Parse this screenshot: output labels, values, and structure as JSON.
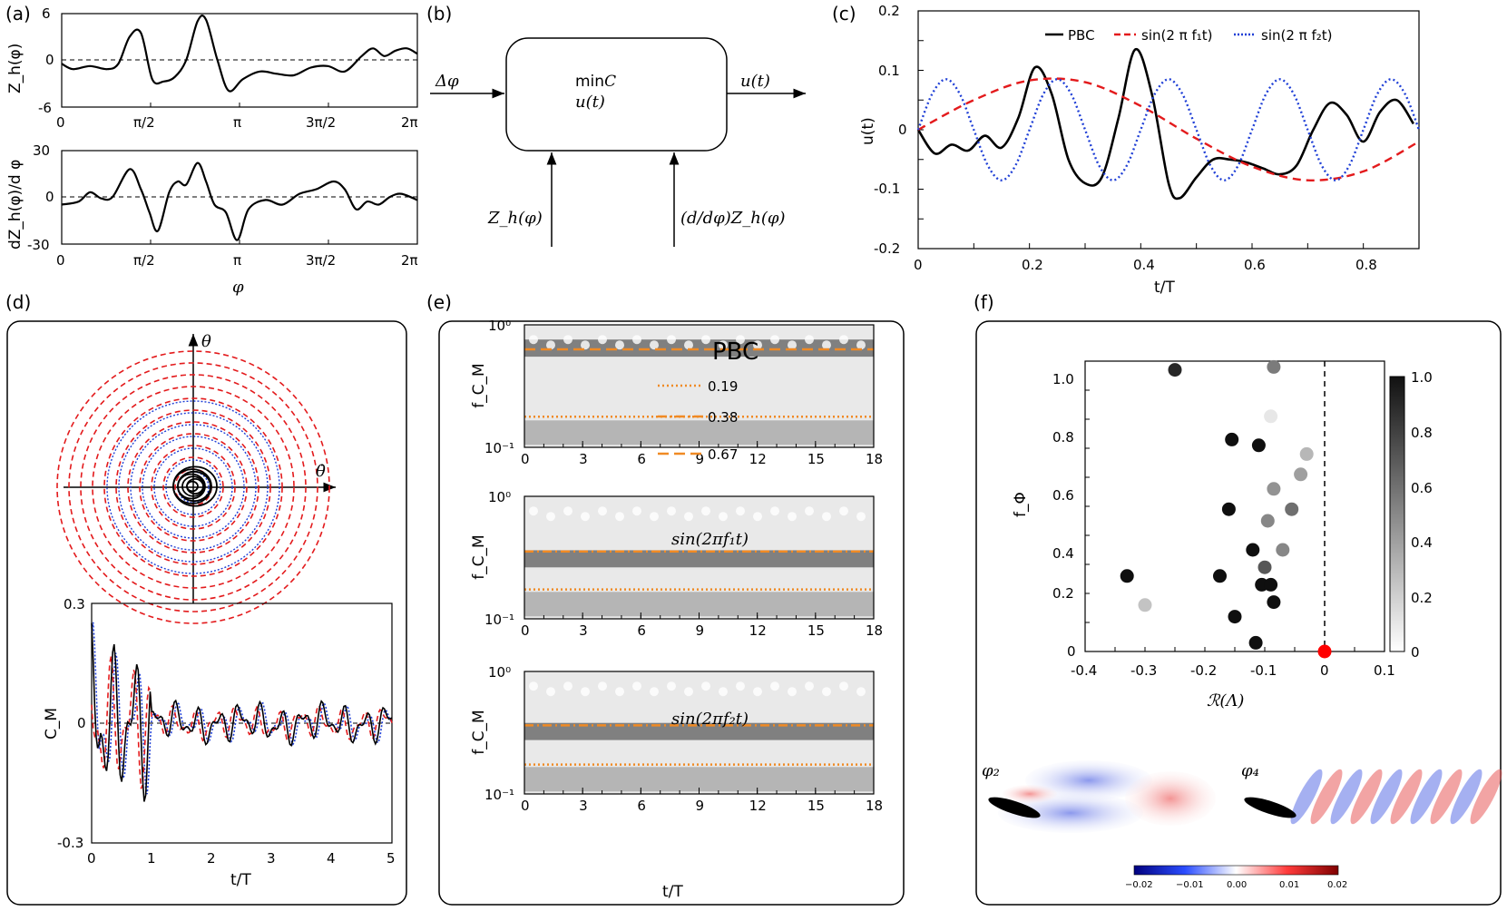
{
  "panels": {
    "a": {
      "label": "(a)",
      "top": {
        "ylabel": "Z_h(φ)",
        "yticks": [
          "6",
          "0",
          "-6"
        ],
        "xticks": [
          "0",
          "π/2",
          "π",
          "3π/2",
          "2π"
        ],
        "ylim": [
          -6,
          6
        ],
        "curve": [
          [
            0,
            -0.5
          ],
          [
            0.2,
            -1.2
          ],
          [
            0.5,
            -0.8
          ],
          [
            0.8,
            -1.2
          ],
          [
            1.0,
            -0.5
          ],
          [
            1.2,
            3
          ],
          [
            1.4,
            3.5
          ],
          [
            1.6,
            -2.5
          ],
          [
            1.8,
            -2.8
          ],
          [
            2.0,
            -2.2
          ],
          [
            2.2,
            0
          ],
          [
            2.4,
            5
          ],
          [
            2.55,
            5.2
          ],
          [
            2.75,
            0
          ],
          [
            2.95,
            -4
          ],
          [
            3.2,
            -2.5
          ],
          [
            3.5,
            -1.5
          ],
          [
            3.8,
            -1.8
          ],
          [
            4.1,
            -2
          ],
          [
            4.4,
            -1
          ],
          [
            4.7,
            -0.8
          ],
          [
            5.0,
            -1.5
          ],
          [
            5.3,
            0.5
          ],
          [
            5.5,
            1.5
          ],
          [
            5.7,
            0.5
          ],
          [
            5.9,
            1.2
          ],
          [
            6.1,
            1.5
          ],
          [
            6.28,
            0.8
          ]
        ]
      },
      "bottom": {
        "ylabel": "dZ_h(φ)/d φ",
        "yticks": [
          "30",
          "0",
          "-30"
        ],
        "xticks": [
          "0",
          "π/2",
          "π",
          "3π/2",
          "2π"
        ],
        "xlabel": "φ",
        "ylim": [
          -30,
          30
        ],
        "curve": [
          [
            0,
            -5
          ],
          [
            0.3,
            -3
          ],
          [
            0.5,
            3
          ],
          [
            0.7,
            -1
          ],
          [
            0.9,
            0
          ],
          [
            1.2,
            18
          ],
          [
            1.4,
            5
          ],
          [
            1.55,
            -10
          ],
          [
            1.7,
            -22
          ],
          [
            1.9,
            3
          ],
          [
            2.05,
            10
          ],
          [
            2.2,
            8
          ],
          [
            2.4,
            22
          ],
          [
            2.55,
            10
          ],
          [
            2.7,
            -5
          ],
          [
            2.9,
            -10
          ],
          [
            3.1,
            -28
          ],
          [
            3.3,
            -8
          ],
          [
            3.6,
            -2
          ],
          [
            3.9,
            -5
          ],
          [
            4.2,
            2
          ],
          [
            4.5,
            5
          ],
          [
            4.8,
            10
          ],
          [
            5.0,
            5
          ],
          [
            5.2,
            -8
          ],
          [
            5.4,
            -3
          ],
          [
            5.6,
            -5
          ],
          [
            5.8,
            0
          ],
          [
            6.0,
            2
          ],
          [
            6.28,
            -2
          ]
        ]
      }
    },
    "b": {
      "label": "(b)",
      "box_line1": "min",
      "box_line1_math": "C",
      "box_line2": "u(t)",
      "input_left": "Δφ",
      "output_right": "u(t)",
      "input_bottom_left": "Z_h(φ)",
      "input_bottom_right": "(d/dφ)Z_h(φ)"
    },
    "c": {
      "label": "(c)",
      "ylabel": "u(t)",
      "xlabel": "t/T",
      "yticks": [
        "0.2",
        "0.1",
        "0",
        "-0.1",
        "-0.2"
      ],
      "xticks": [
        "0",
        "0.2",
        "0.4",
        "0.6",
        "0.8"
      ],
      "legend": [
        "PBC",
        "sin(2 π f₁t)",
        "sin(2 π f₂t)"
      ]
    },
    "d": {
      "label": "(d)",
      "phase_xlabel": "θ̇",
      "phase_ylabel": "θ",
      "ylabel": "C_M",
      "xlabel": "t/T",
      "yticks": [
        "0.3",
        "0",
        "-0.3"
      ],
      "xticks": [
        "0",
        "1",
        "2",
        "3",
        "4",
        "5"
      ]
    },
    "e": {
      "label": "(e)",
      "ylabel": "f_C_M",
      "xlabel": "t/T",
      "yticks_top": "10⁰",
      "yticks_bottom": "10⁻¹",
      "xticks": [
        "0",
        "3",
        "6",
        "9",
        "12",
        "15",
        "18"
      ],
      "titles": [
        "PBC",
        "sin(2πf₁t)",
        "sin(2πf₂t)"
      ],
      "legend": [
        "0.19",
        "0.38",
        "0.67"
      ]
    },
    "f": {
      "label": "(f)",
      "ylabel": "f_Φ",
      "xlabel": "ℛ(Λ)",
      "yticks": [
        "1.0",
        "0.8",
        "0.6",
        "0.4",
        "0.2",
        "0"
      ],
      "xticks": [
        "-0.4",
        "-0.3",
        "-0.2",
        "-0.1",
        "0",
        "0.1"
      ],
      "cbar_ticks": [
        "1.0",
        "0.8",
        "0.6",
        "0.4",
        "0.2",
        "0"
      ],
      "mode_labels": [
        "φ₂",
        "φ₄"
      ],
      "mode_cbar_ticks": [
        "−0.02",
        "−0.01",
        "0.00",
        "0.01",
        "0.02"
      ]
    }
  },
  "chart_data": [
    {
      "type": "line",
      "title": "",
      "xlabel": "t/T",
      "ylabel": "u(t)",
      "xlim": [
        0,
        0.9
      ],
      "ylim": [
        -0.2,
        0.2
      ],
      "series": [
        {
          "name": "PBC",
          "color": "#000000",
          "x": [
            0,
            0.03,
            0.06,
            0.09,
            0.12,
            0.15,
            0.18,
            0.21,
            0.24,
            0.27,
            0.3,
            0.33,
            0.36,
            0.39,
            0.42,
            0.45,
            0.47,
            0.5,
            0.53,
            0.56,
            0.59,
            0.62,
            0.65,
            0.68,
            0.71,
            0.74,
            0.77,
            0.8,
            0.83,
            0.86,
            0.89
          ],
          "y": [
            0,
            -0.04,
            -0.025,
            -0.035,
            -0.01,
            -0.03,
            0.02,
            0.105,
            0.06,
            -0.05,
            -0.09,
            -0.08,
            0.02,
            0.135,
            0.06,
            -0.09,
            -0.115,
            -0.08,
            -0.05,
            -0.05,
            -0.055,
            -0.065,
            -0.075,
            -0.06,
            0.0,
            0.045,
            0.025,
            -0.02,
            0.03,
            0.05,
            0.01
          ]
        },
        {
          "name": "sin(2 π f₁t)",
          "color": "#e31a1c",
          "x": [
            0,
            0.1,
            0.2,
            0.3,
            0.4,
            0.5,
            0.6,
            0.7,
            0.8,
            0.9
          ],
          "y": [
            0,
            0.05,
            0.083,
            0.08,
            0.04,
            -0.015,
            -0.062,
            -0.085,
            -0.07,
            -0.02
          ]
        },
        {
          "name": "sin(2 π f₂t)",
          "color": "#1f3fd6",
          "x": [
            0,
            0.025,
            0.05,
            0.075,
            0.1,
            0.125,
            0.15,
            0.175,
            0.2,
            0.225,
            0.25,
            0.275,
            0.3,
            0.325,
            0.35,
            0.375,
            0.4,
            0.425,
            0.45,
            0.475,
            0.5,
            0.525,
            0.55,
            0.575,
            0.6,
            0.625,
            0.65,
            0.675,
            0.7,
            0.725,
            0.75,
            0.775,
            0.8,
            0.825,
            0.85,
            0.875,
            0.9
          ],
          "y": [
            0,
            0.06,
            0.085,
            0.06,
            0,
            -0.06,
            -0.085,
            -0.06,
            0,
            0.06,
            0.085,
            0.06,
            0,
            -0.06,
            -0.085,
            -0.06,
            0,
            0.06,
            0.085,
            0.06,
            0,
            -0.06,
            -0.085,
            -0.06,
            0,
            0.06,
            0.085,
            0.06,
            0,
            -0.06,
            -0.085,
            -0.06,
            0,
            0.06,
            0.085,
            0.06,
            0
          ]
        }
      ]
    },
    {
      "type": "scatter",
      "xlabel": "ℛ(Λ)",
      "ylabel": "f_Φ",
      "xlim": [
        -0.4,
        0.1
      ],
      "ylim": [
        0,
        1.0
      ],
      "points": [
        {
          "x": -0.25,
          "y": 0.97,
          "shade": 0.9
        },
        {
          "x": -0.085,
          "y": 0.98,
          "shade": 0.55
        },
        {
          "x": -0.09,
          "y": 0.81,
          "shade": 0.1
        },
        {
          "x": -0.155,
          "y": 0.73,
          "shade": 1.0
        },
        {
          "x": -0.11,
          "y": 0.71,
          "shade": 1.0
        },
        {
          "x": -0.03,
          "y": 0.68,
          "shade": 0.3
        },
        {
          "x": -0.04,
          "y": 0.61,
          "shade": 0.4
        },
        {
          "x": -0.085,
          "y": 0.56,
          "shade": 0.45
        },
        {
          "x": -0.16,
          "y": 0.49,
          "shade": 1.0
        },
        {
          "x": -0.055,
          "y": 0.49,
          "shade": 0.6
        },
        {
          "x": -0.095,
          "y": 0.45,
          "shade": 0.5
        },
        {
          "x": -0.12,
          "y": 0.35,
          "shade": 1.0
        },
        {
          "x": -0.07,
          "y": 0.35,
          "shade": 0.5
        },
        {
          "x": -0.1,
          "y": 0.29,
          "shade": 0.7
        },
        {
          "x": -0.33,
          "y": 0.26,
          "shade": 1.0
        },
        {
          "x": -0.175,
          "y": 0.26,
          "shade": 1.0
        },
        {
          "x": -0.105,
          "y": 0.23,
          "shade": 1.0
        },
        {
          "x": -0.09,
          "y": 0.23,
          "shade": 1.0
        },
        {
          "x": -0.3,
          "y": 0.16,
          "shade": 0.25
        },
        {
          "x": -0.085,
          "y": 0.17,
          "shade": 1.0
        },
        {
          "x": -0.15,
          "y": 0.12,
          "shade": 1.0
        },
        {
          "x": -0.115,
          "y": 0.03,
          "shade": 1.0
        },
        {
          "x": 0.0,
          "y": 0.0,
          "shade": -1
        }
      ]
    }
  ]
}
